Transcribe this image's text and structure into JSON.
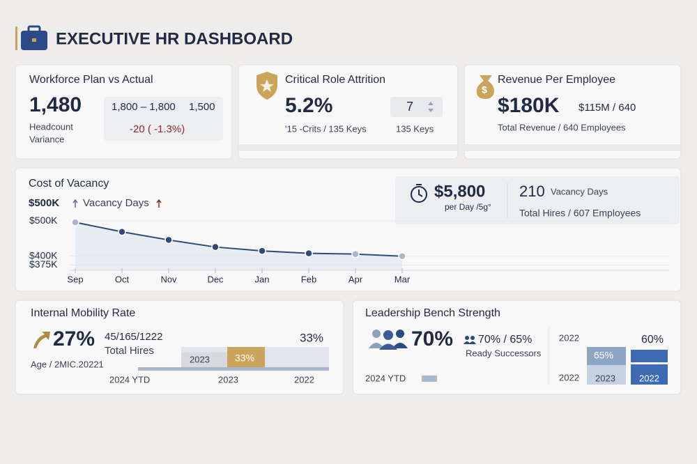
{
  "header": {
    "title": "EXECUTIVE HR DASHBOARD"
  },
  "workforce": {
    "title": "Workforce Plan vs Actual",
    "value": "1,480",
    "label_1": "Headcount",
    "label_2": "Variance",
    "plan": "1,800 – 1,800",
    "actual": "1,500",
    "variance": "-20 ( -1.3%)"
  },
  "attrition": {
    "title": "Critical Role Attrition",
    "value": "5.2%",
    "detail": "'15 -Crits / 135 Keys",
    "input": "7",
    "keys": "135 Keys"
  },
  "revenue": {
    "title": "Revenue Per Employee",
    "value": "$180K",
    "ratio": "$115M / 640",
    "detail": "Total Revenue / 640 Employees"
  },
  "cost_of_vacancy": {
    "title": "Cost of Vacancy",
    "headline": "$500K",
    "legend": "Vacancy Days",
    "cost": "$5,800",
    "cost_unit": "per Day /5g°",
    "days": "210",
    "days_label": "Vacancy Days",
    "hires": "Total Hires  /  607 Employees",
    "chart": {
      "type": "line",
      "categories": [
        "Sep",
        "Oct",
        "Nov",
        "Dec",
        "Jan",
        "Feb",
        "Apr",
        "Mar"
      ],
      "values": [
        496000,
        469000,
        446000,
        426000,
        415000,
        408000,
        406000,
        400000
      ],
      "ylim": [
        360000,
        510000
      ],
      "yticks": [
        {
          "value": 375000,
          "label": "$375K"
        },
        {
          "value": 400000,
          "label": "$400K"
        },
        {
          "value": 500000,
          "label": "$500K"
        }
      ],
      "color": "#2f4a7a",
      "grid": true
    }
  },
  "mobility": {
    "title": "Internal Mobility Rate",
    "value": "27%",
    "counts": "45/165/1222",
    "counts_label": "Total Hires",
    "target": "33%",
    "age": "Age / 2MIC.20221",
    "bar_year": "2023",
    "bar_value": "33%",
    "axis": [
      "2024 YTD",
      "2023",
      "2022"
    ]
  },
  "bench": {
    "title": "Leadership Bench Strength",
    "value": "70%",
    "compare": "70% / 65%",
    "compare_label": "Ready Successors",
    "ytd": "2024 YTD",
    "year_top": "2022",
    "value_2022": "60%",
    "value_2023": "65%",
    "bar_2023": "2023",
    "bar_2022": "2022",
    "year_bottom": "2022"
  }
}
